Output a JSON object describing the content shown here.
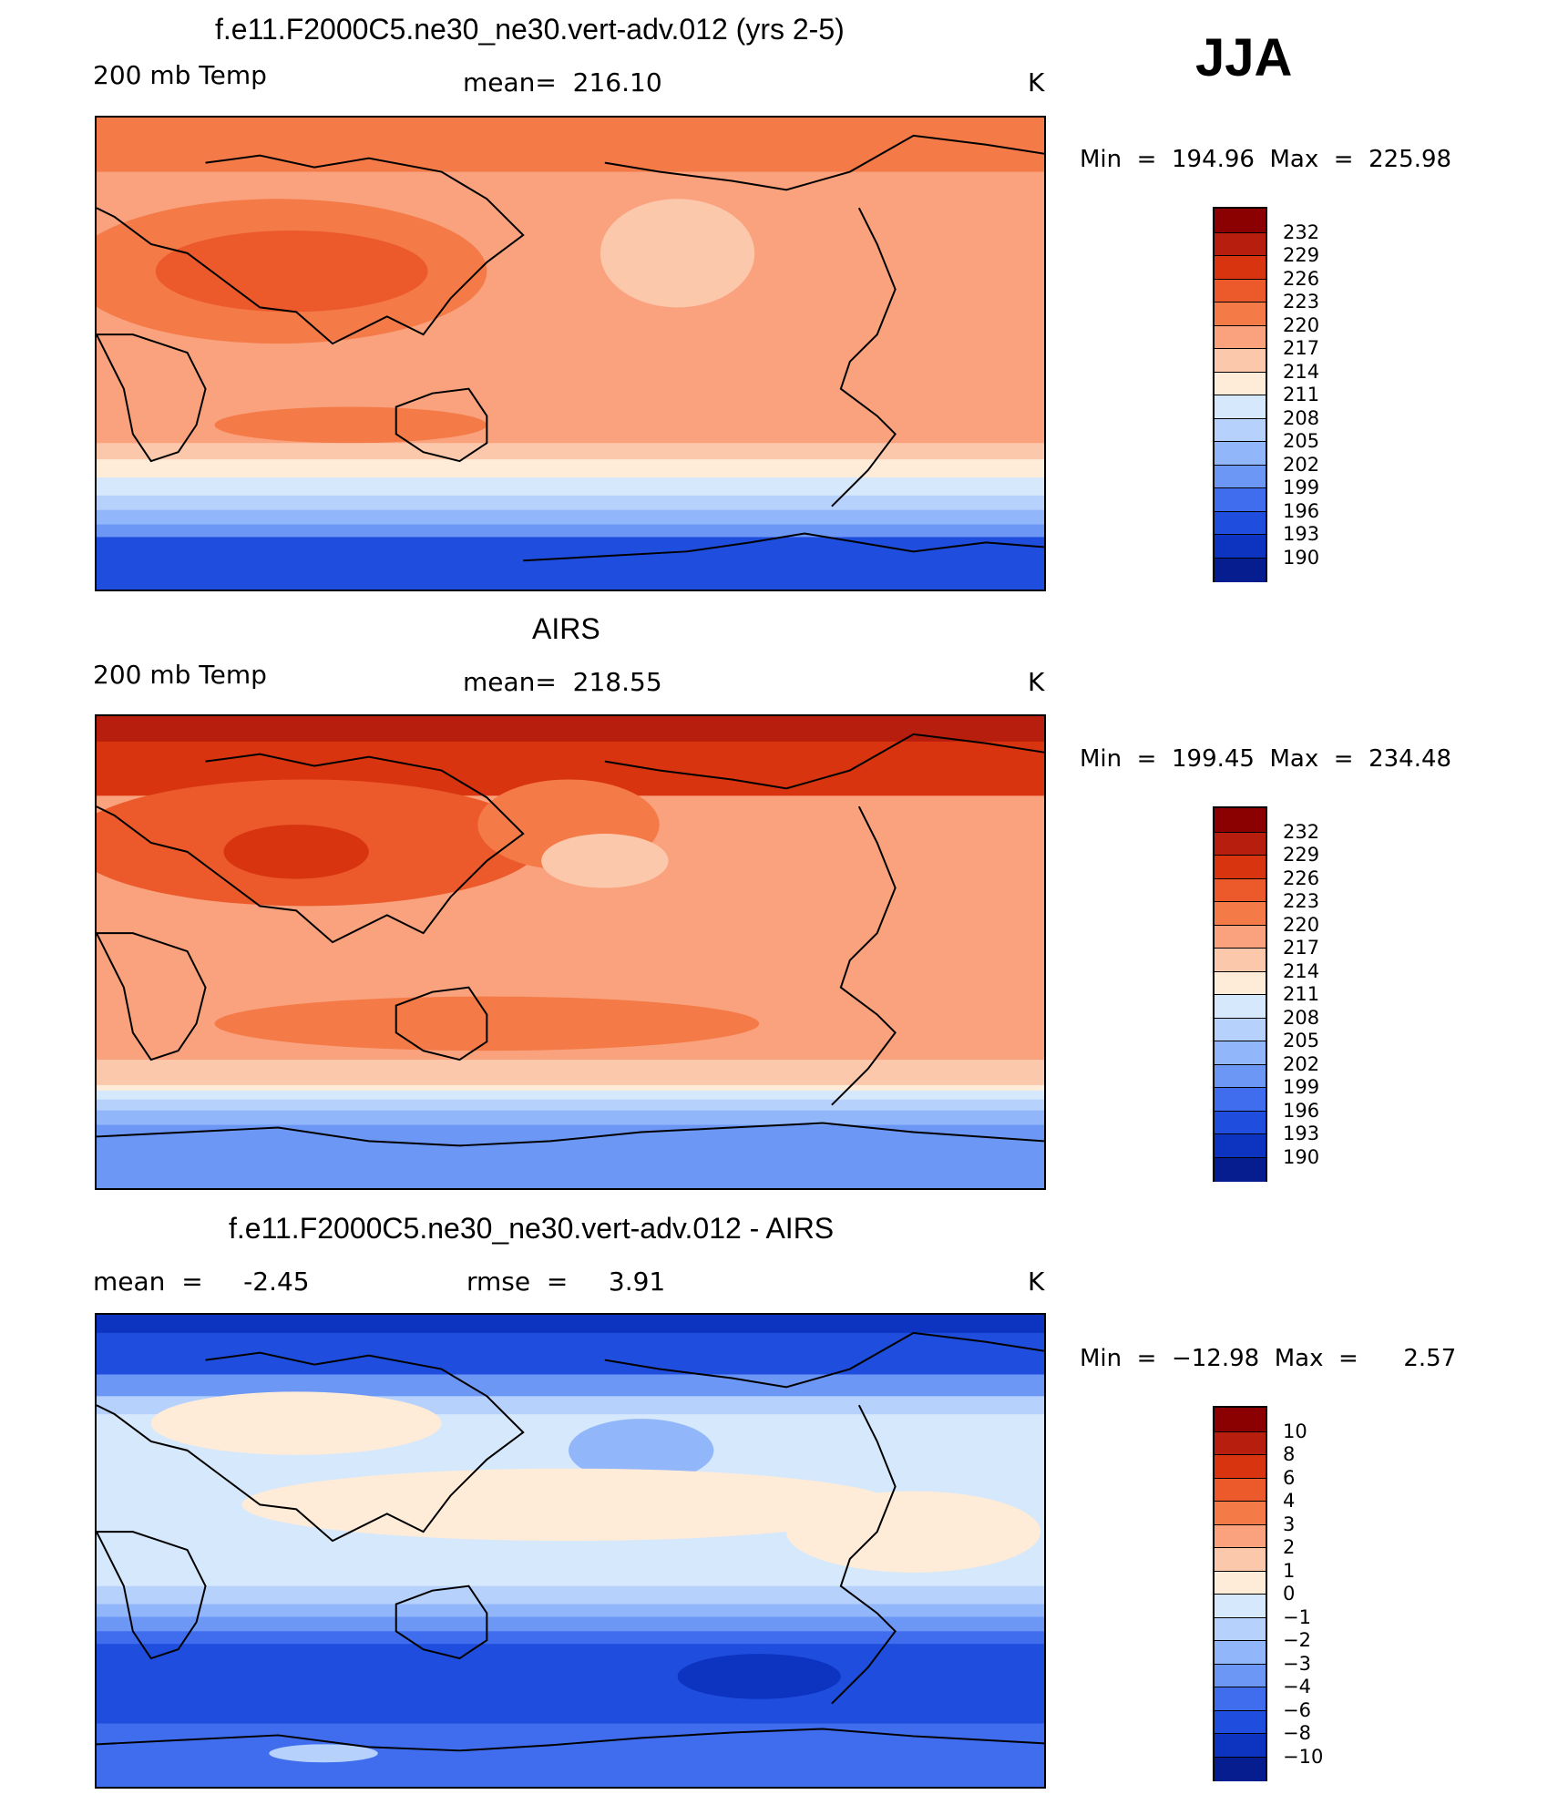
{
  "season": "JJA",
  "panels": [
    {
      "title": "f.e11.F2000C5.ne30_ne30.vert-adv.012 (yrs 2-5)",
      "left_label": "200 mb Temp",
      "center_label": "mean=  216.10",
      "right_label": "K",
      "minmax": "Min  =  194.96  Max  =  225.98",
      "colorbar_ticks": [
        "232",
        "229",
        "226",
        "223",
        "220",
        "217",
        "214",
        "211",
        "208",
        "205",
        "202",
        "199",
        "196",
        "193",
        "190"
      ],
      "colorbar_colors": [
        "#8b0000",
        "#b81e0e",
        "#d8340f",
        "#ec5a2c",
        "#f47a48",
        "#f9a27d",
        "#fcc8ac",
        "#feebd8",
        "#d6e8fb",
        "#b6d1fb",
        "#92b6fa",
        "#6c97f5",
        "#3f6ded",
        "#1f4ede",
        "#0c34c0",
        "#051d8f"
      ],
      "stats": {
        "min": 194.96,
        "max": 225.98,
        "mean": 216.1,
        "units": "K"
      }
    },
    {
      "title": "AIRS",
      "left_label": "200 mb Temp",
      "center_label": "mean=  218.55",
      "right_label": "K",
      "minmax": "Min  =  199.45  Max  =  234.48",
      "colorbar_ticks": [
        "232",
        "229",
        "226",
        "223",
        "220",
        "217",
        "214",
        "211",
        "208",
        "205",
        "202",
        "199",
        "196",
        "193",
        "190"
      ],
      "colorbar_colors": [
        "#8b0000",
        "#b81e0e",
        "#d8340f",
        "#ec5a2c",
        "#f47a48",
        "#f9a27d",
        "#fcc8ac",
        "#feebd8",
        "#d6e8fb",
        "#b6d1fb",
        "#92b6fa",
        "#6c97f5",
        "#3f6ded",
        "#1f4ede",
        "#0c34c0",
        "#051d8f"
      ],
      "stats": {
        "min": 199.45,
        "max": 234.48,
        "mean": 218.55,
        "units": "K"
      }
    },
    {
      "title": "f.e11.F2000C5.ne30_ne30.vert-adv.012 - AIRS",
      "left_label": "mean  =     -2.45",
      "center_label": "rmse  =     3.91",
      "right_label": "K",
      "minmax": "Min  =  −12.98  Max  =      2.57",
      "colorbar_ticks": [
        "10",
        "8",
        "6",
        "4",
        "3",
        "2",
        "1",
        "0",
        "−1",
        "−2",
        "−3",
        "−4",
        "−6",
        "−8",
        "−10"
      ],
      "colorbar_colors": [
        "#8b0000",
        "#b81e0e",
        "#d8340f",
        "#ec5a2c",
        "#f47a48",
        "#f9a27d",
        "#fcc8ac",
        "#feebd8",
        "#d6e8fb",
        "#b6d1fb",
        "#92b6fa",
        "#6c97f5",
        "#3f6ded",
        "#1f4ede",
        "#0c34c0",
        "#051d8f"
      ],
      "stats": {
        "min": -12.98,
        "max": 2.57,
        "mean": -2.45,
        "rmse": 3.91,
        "units": "K"
      }
    }
  ]
}
